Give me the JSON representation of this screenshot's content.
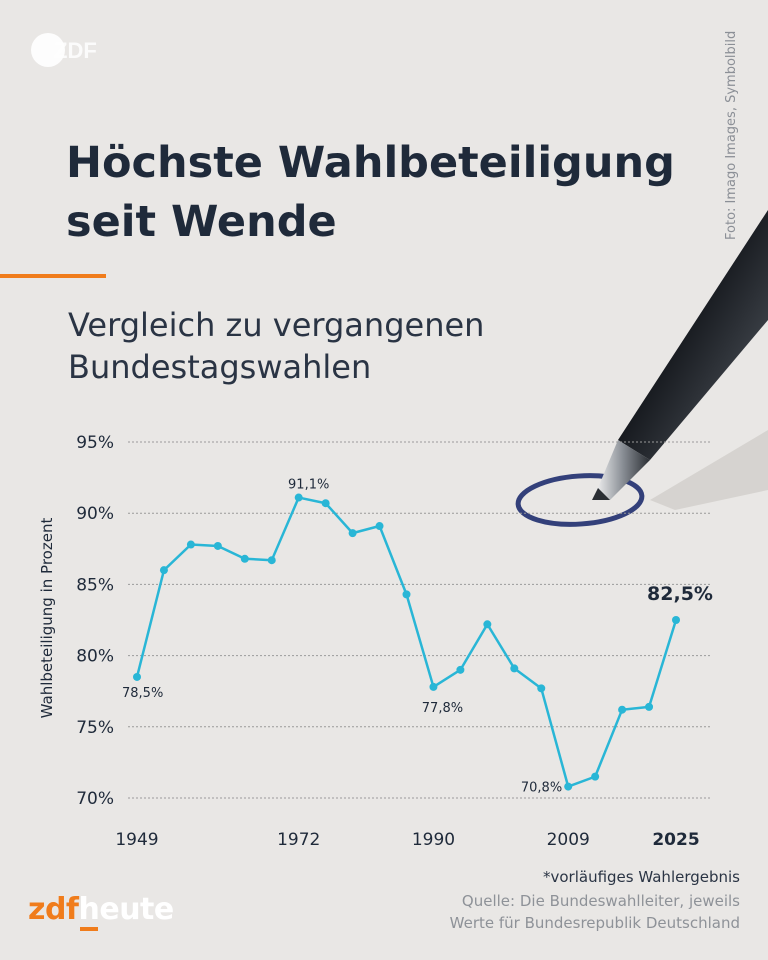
{
  "header": {
    "logo": "ZDF",
    "photo_credit": "Foto: Imago Images, Symbolbild",
    "title_line1": "Höchste Wahlbeteiligung",
    "title_line2": "seit Wende",
    "subtitle_line1": "Vergleich zu vergangenen",
    "subtitle_line2": "Bundestagswahlen"
  },
  "colors": {
    "line": "#29b6d6",
    "accent": "#f07c1b",
    "text": "#1f2a3a",
    "grid": "#9a9a9a"
  },
  "chart_data": {
    "type": "line",
    "title": "Höchste Wahlbeteiligung seit Wende",
    "ylabel": "Wahlbeteiligung in Prozent",
    "xlabel": "",
    "ylim": [
      70,
      95
    ],
    "yticks": [
      95,
      90,
      85,
      80,
      75,
      70
    ],
    "ytick_labels": [
      "95%",
      "90%",
      "85%",
      "80%",
      "75%",
      "70%"
    ],
    "xtick_labels": [
      "1949",
      "1972",
      "1990",
      "2009",
      "2025"
    ],
    "xtick_years": [
      1949,
      1972,
      1990,
      2009,
      2025
    ],
    "grid": true,
    "series": [
      {
        "name": "Wahlbeteiligung",
        "x": [
          1949,
          1953,
          1957,
          1961,
          1965,
          1969,
          1972,
          1976,
          1980,
          1983,
          1987,
          1990,
          1994,
          1998,
          2002,
          2005,
          2009,
          2013,
          2017,
          2021,
          2025
        ],
        "values": [
          78.5,
          86.0,
          87.8,
          87.7,
          86.8,
          86.7,
          91.1,
          90.7,
          88.6,
          89.1,
          84.3,
          77.8,
          79.0,
          82.2,
          79.1,
          77.7,
          70.8,
          71.5,
          76.2,
          76.4,
          82.5
        ]
      }
    ],
    "annotations": [
      {
        "x": 1949,
        "value": 78.5,
        "text": "78,5%"
      },
      {
        "x": 1972,
        "value": 91.1,
        "text": "91,1%"
      },
      {
        "x": 1990,
        "value": 77.8,
        "text": "77,8%"
      },
      {
        "x": 2009,
        "value": 70.8,
        "text": "70,8%"
      },
      {
        "x": 2025,
        "value": 82.5,
        "text": "82,5%"
      }
    ]
  },
  "footer": {
    "footnote": "*vorläufiges Wahlergebnis",
    "source_line1": "Quelle: Die Bundeswahlleiter, jeweils",
    "source_line2": "Werte für Bundesrepublik Deutschland",
    "brand_part1": "zdf",
    "brand_part2": "heute"
  }
}
